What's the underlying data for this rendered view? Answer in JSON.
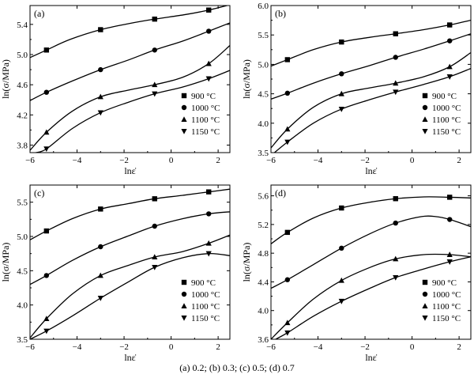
{
  "caption": "(a) 0.2; (b) 0.3; (c) 0.5; (d) 0.7",
  "chart_data": [
    {
      "type": "line",
      "panel_label": "(a)",
      "xlabel": "lnε̇",
      "ylabel": "ln(σ/MPa)",
      "xlim": [
        -6,
        2.5
      ],
      "ylim": [
        3.7,
        5.65
      ],
      "xticks": [
        -6,
        -4,
        -2,
        0,
        2
      ],
      "yticks": [
        3.8,
        4.2,
        4.6,
        5.0,
        5.4
      ],
      "ytick_labels": [
        "3.8",
        "4.2",
        "4.6",
        "5.0",
        "5.4"
      ],
      "legend_position": "bottom-right",
      "series": [
        {
          "name": "900 °C",
          "marker": "square",
          "x": [
            -5.3,
            -3.0,
            -0.7,
            1.6
          ],
          "y": [
            5.06,
            5.33,
            5.47,
            5.59
          ],
          "curve": [
            [
              -6,
              4.96
            ],
            [
              -5.3,
              5.06
            ],
            [
              -4.3,
              5.2
            ],
            [
              -3.0,
              5.33
            ],
            [
              -1.8,
              5.41
            ],
            [
              -0.7,
              5.47
            ],
            [
              0.6,
              5.53
            ],
            [
              1.6,
              5.59
            ],
            [
              2.5,
              5.66
            ]
          ]
        },
        {
          "name": "1000 °C",
          "marker": "circle",
          "x": [
            -5.3,
            -3.0,
            -0.7,
            1.6
          ],
          "y": [
            4.5,
            4.8,
            5.06,
            5.31
          ],
          "curve": [
            [
              -6,
              4.39
            ],
            [
              -5.3,
              4.5
            ],
            [
              -4.2,
              4.65
            ],
            [
              -3.0,
              4.8
            ],
            [
              -1.8,
              4.93
            ],
            [
              -0.7,
              5.06
            ],
            [
              0.5,
              5.18
            ],
            [
              1.6,
              5.31
            ],
            [
              2.5,
              5.42
            ]
          ]
        },
        {
          "name": "1100 °C",
          "marker": "triangle-up",
          "x": [
            -5.3,
            -3.0,
            -0.7,
            1.6
          ],
          "y": [
            3.97,
            4.44,
            4.6,
            4.88
          ],
          "curve": [
            [
              -6,
              3.73
            ],
            [
              -5.3,
              3.97
            ],
            [
              -4.2,
              4.25
            ],
            [
              -3.0,
              4.44
            ],
            [
              -1.8,
              4.53
            ],
            [
              -0.7,
              4.6
            ],
            [
              0.5,
              4.7
            ],
            [
              1.6,
              4.88
            ],
            [
              2.5,
              5.12
            ]
          ]
        },
        {
          "name": "1150 °C",
          "marker": "triangle-down",
          "x": [
            -5.3,
            -3.0,
            -0.7,
            1.6
          ],
          "y": [
            3.75,
            4.23,
            4.48,
            4.68
          ],
          "curve": [
            [
              -5.75,
              3.7
            ],
            [
              -5.3,
              3.75
            ],
            [
              -4.2,
              4.02
            ],
            [
              -3.0,
              4.23
            ],
            [
              -1.8,
              4.37
            ],
            [
              -0.7,
              4.48
            ],
            [
              0.5,
              4.57
            ],
            [
              1.6,
              4.68
            ],
            [
              2.5,
              4.79
            ]
          ]
        }
      ]
    },
    {
      "type": "line",
      "panel_label": "(b)",
      "xlabel": "lnε̇",
      "ylabel": "ln(σ/MPa)",
      "xlim": [
        -6,
        2.5
      ],
      "ylim": [
        3.5,
        6.0
      ],
      "xticks": [
        -6,
        -4,
        -2,
        0,
        2
      ],
      "yticks": [
        3.5,
        4.0,
        4.5,
        5.0,
        5.5,
        6.0
      ],
      "ytick_labels": [
        "3.5",
        "4.0",
        "4.5",
        "5.0",
        "5.5",
        "6.0"
      ],
      "legend_position": "bottom-right",
      "series": [
        {
          "name": "900 °C",
          "marker": "square",
          "x": [
            -5.3,
            -3.0,
            -0.7,
            1.6
          ],
          "y": [
            5.08,
            5.38,
            5.52,
            5.67
          ],
          "curve": [
            [
              -6,
              4.97
            ],
            [
              -5.3,
              5.08
            ],
            [
              -4.2,
              5.25
            ],
            [
              -3.0,
              5.38
            ],
            [
              -1.8,
              5.46
            ],
            [
              -0.7,
              5.52
            ],
            [
              0.5,
              5.59
            ],
            [
              1.6,
              5.67
            ],
            [
              2.5,
              5.75
            ]
          ]
        },
        {
          "name": "1000 °C",
          "marker": "circle",
          "x": [
            -5.3,
            -3.0,
            -0.7,
            1.6
          ],
          "y": [
            4.51,
            4.84,
            5.12,
            5.4
          ],
          "curve": [
            [
              -6,
              4.41
            ],
            [
              -5.3,
              4.51
            ],
            [
              -4.2,
              4.68
            ],
            [
              -3.0,
              4.84
            ],
            [
              -1.8,
              4.98
            ],
            [
              -0.7,
              5.12
            ],
            [
              0.5,
              5.26
            ],
            [
              1.6,
              5.4
            ],
            [
              2.5,
              5.52
            ]
          ]
        },
        {
          "name": "1100 °C",
          "marker": "triangle-up",
          "x": [
            -5.3,
            -3.0,
            -0.7,
            1.6
          ],
          "y": [
            3.9,
            4.5,
            4.68,
            4.96
          ],
          "curve": [
            [
              -6,
              3.58
            ],
            [
              -5.3,
              3.9
            ],
            [
              -4.2,
              4.27
            ],
            [
              -3.0,
              4.5
            ],
            [
              -1.8,
              4.6
            ],
            [
              -0.7,
              4.68
            ],
            [
              0.5,
              4.79
            ],
            [
              1.6,
              4.96
            ],
            [
              2.5,
              5.2
            ]
          ]
        },
        {
          "name": "1150 °C",
          "marker": "triangle-down",
          "x": [
            -5.3,
            -3.0,
            -0.7,
            1.6
          ],
          "y": [
            3.68,
            4.24,
            4.53,
            4.79
          ],
          "curve": [
            [
              -6,
              3.45
            ],
            [
              -5.3,
              3.68
            ],
            [
              -4.2,
              4.0
            ],
            [
              -3.0,
              4.24
            ],
            [
              -1.8,
              4.4
            ],
            [
              -0.7,
              4.53
            ],
            [
              0.5,
              4.66
            ],
            [
              1.6,
              4.79
            ],
            [
              2.5,
              4.93
            ]
          ]
        }
      ]
    },
    {
      "type": "line",
      "panel_label": "(c)",
      "xlabel": "lnε̇",
      "ylabel": "ln(σ/MPa)",
      "xlim": [
        -6,
        2.5
      ],
      "ylim": [
        3.5,
        5.75
      ],
      "xticks": [
        -6,
        -4,
        -2,
        0,
        2
      ],
      "yticks": [
        3.5,
        4.0,
        4.5,
        5.0,
        5.5
      ],
      "ytick_labels": [
        "3.5",
        "4.0",
        "4.5",
        "5.0",
        "5.5"
      ],
      "legend_position": "bottom-right",
      "series": [
        {
          "name": "900 °C",
          "marker": "square",
          "x": [
            -5.3,
            -3.0,
            -0.7,
            1.6
          ],
          "y": [
            5.08,
            5.4,
            5.55,
            5.65
          ],
          "curve": [
            [
              -6,
              4.95
            ],
            [
              -5.3,
              5.08
            ],
            [
              -4.2,
              5.26
            ],
            [
              -3.0,
              5.4
            ],
            [
              -1.8,
              5.48
            ],
            [
              -0.7,
              5.55
            ],
            [
              0.5,
              5.6
            ],
            [
              1.6,
              5.65
            ],
            [
              2.5,
              5.69
            ]
          ]
        },
        {
          "name": "1000 °C",
          "marker": "circle",
          "x": [
            -5.3,
            -3.0,
            -0.7,
            1.6
          ],
          "y": [
            4.43,
            4.85,
            5.15,
            5.33
          ],
          "curve": [
            [
              -6,
              4.3
            ],
            [
              -5.3,
              4.43
            ],
            [
              -4.2,
              4.65
            ],
            [
              -3.0,
              4.85
            ],
            [
              -1.8,
              5.01
            ],
            [
              -0.7,
              5.15
            ],
            [
              0.5,
              5.26
            ],
            [
              1.6,
              5.33
            ],
            [
              2.5,
              5.36
            ]
          ]
        },
        {
          "name": "1100 °C",
          "marker": "triangle-up",
          "x": [
            -5.3,
            -3.0,
            -0.7,
            1.6
          ],
          "y": [
            3.8,
            4.43,
            4.7,
            4.9
          ],
          "curve": [
            [
              -6,
              3.52
            ],
            [
              -5.3,
              3.8
            ],
            [
              -4.2,
              4.16
            ],
            [
              -3.0,
              4.43
            ],
            [
              -1.8,
              4.58
            ],
            [
              -0.7,
              4.7
            ],
            [
              0.5,
              4.78
            ],
            [
              1.6,
              4.9
            ],
            [
              2.5,
              5.02
            ]
          ]
        },
        {
          "name": "1150 °C",
          "marker": "triangle-down",
          "x": [
            -5.3,
            -3.0,
            -0.7,
            1.6
          ],
          "y": [
            3.62,
            4.1,
            4.55,
            4.75
          ],
          "curve": [
            [
              -6,
              3.5
            ],
            [
              -5.3,
              3.62
            ],
            [
              -4.2,
              3.84
            ],
            [
              -3.0,
              4.1
            ],
            [
              -1.8,
              4.34
            ],
            [
              -0.7,
              4.55
            ],
            [
              0.5,
              4.69
            ],
            [
              1.6,
              4.75
            ],
            [
              2.5,
              4.72
            ]
          ]
        }
      ]
    },
    {
      "type": "line",
      "panel_label": "(d)",
      "xlabel": "lnε̇",
      "ylabel": "ln(σ/MPa)",
      "xlim": [
        -6,
        2.5
      ],
      "ylim": [
        3.6,
        5.75
      ],
      "xticks": [
        -6,
        -4,
        -2,
        0,
        2
      ],
      "yticks": [
        3.6,
        4.0,
        4.4,
        4.8,
        5.2,
        5.6
      ],
      "ytick_labels": [
        "3.6",
        "4.0",
        "4.4",
        "4.8",
        "5.2",
        "5.6"
      ],
      "legend_position": "bottom-right",
      "series": [
        {
          "name": "900 °C",
          "marker": "square",
          "x": [
            -5.3,
            -3.0,
            -0.7,
            1.6
          ],
          "y": [
            5.09,
            5.43,
            5.56,
            5.58
          ],
          "curve": [
            [
              -6,
              4.93
            ],
            [
              -5.3,
              5.09
            ],
            [
              -4.2,
              5.29
            ],
            [
              -3.0,
              5.43
            ],
            [
              -1.8,
              5.51
            ],
            [
              -0.7,
              5.56
            ],
            [
              0.5,
              5.585
            ],
            [
              1.6,
              5.58
            ],
            [
              2.5,
              5.57
            ]
          ]
        },
        {
          "name": "1000 °C",
          "marker": "circle",
          "x": [
            -5.3,
            -3.0,
            -0.7,
            1.6
          ],
          "y": [
            4.43,
            4.87,
            5.22,
            5.27
          ],
          "curve": [
            [
              -6,
              4.31
            ],
            [
              -5.3,
              4.43
            ],
            [
              -4.2,
              4.64
            ],
            [
              -3.0,
              4.87
            ],
            [
              -1.8,
              5.07
            ],
            [
              -0.7,
              5.22
            ],
            [
              0.4,
              5.31
            ],
            [
              1.0,
              5.31
            ],
            [
              1.6,
              5.27
            ],
            [
              2.5,
              5.17
            ]
          ]
        },
        {
          "name": "1100 °C",
          "marker": "triangle-up",
          "x": [
            -5.3,
            -3.0,
            -0.7,
            1.6
          ],
          "y": [
            3.83,
            4.42,
            4.72,
            4.78
          ],
          "curve": [
            [
              -6,
              3.6
            ],
            [
              -5.3,
              3.83
            ],
            [
              -4.2,
              4.16
            ],
            [
              -3.0,
              4.42
            ],
            [
              -1.8,
              4.6
            ],
            [
              -0.7,
              4.72
            ],
            [
              0.5,
              4.78
            ],
            [
              1.6,
              4.78
            ],
            [
              2.5,
              4.75
            ]
          ]
        },
        {
          "name": "1150 °C",
          "marker": "triangle-down",
          "x": [
            -5.3,
            -3.0,
            -0.7,
            1.6
          ],
          "y": [
            3.69,
            4.13,
            4.46,
            4.68
          ],
          "curve": [
            [
              -5.8,
              3.6
            ],
            [
              -5.3,
              3.69
            ],
            [
              -4.2,
              3.92
            ],
            [
              -3.0,
              4.13
            ],
            [
              -1.8,
              4.31
            ],
            [
              -0.7,
              4.46
            ],
            [
              0.5,
              4.58
            ],
            [
              1.6,
              4.68
            ],
            [
              2.5,
              4.75
            ]
          ]
        }
      ]
    }
  ]
}
